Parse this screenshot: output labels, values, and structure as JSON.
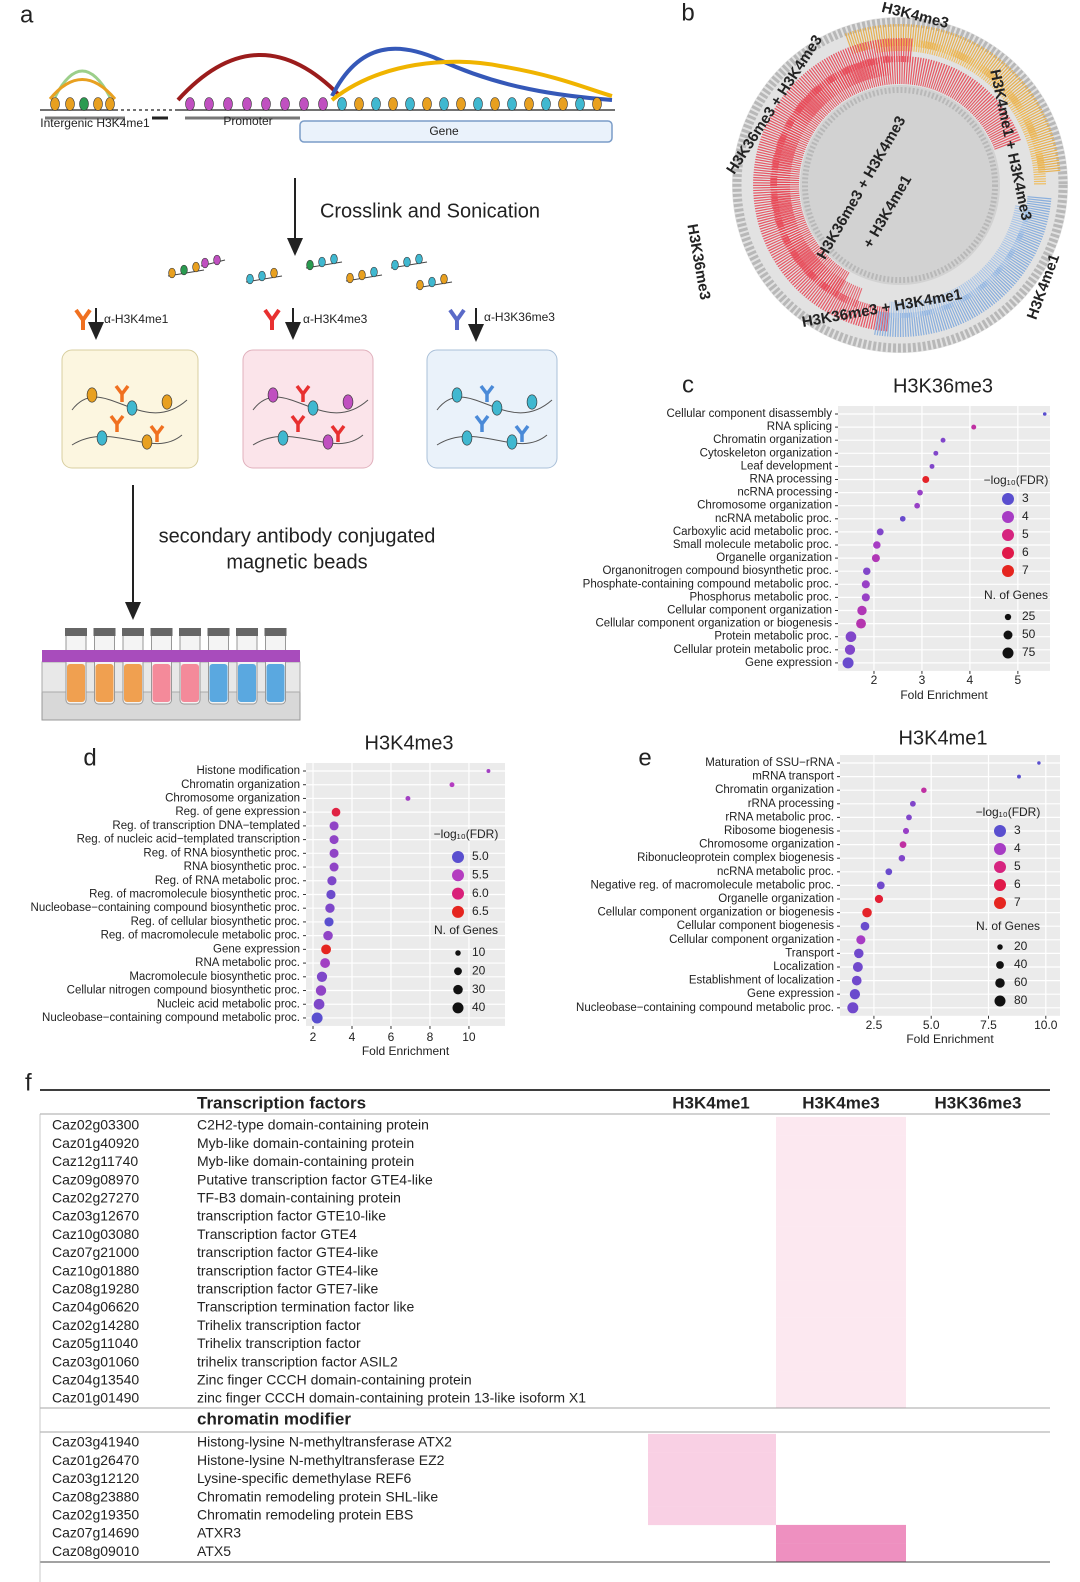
{
  "panel_a": {
    "label": "a",
    "regions": [
      "Intergenic H3K4me1",
      "Promoter",
      "Gene"
    ],
    "step1": "Crosslink and Sonication",
    "antibodies": [
      "α-H3K4me1",
      "α-H3K4me3",
      "α-H3K36me3"
    ],
    "step2": [
      "secondary antibody conjugated",
      "magnetic beads"
    ]
  },
  "panel_b": {
    "label": "b",
    "labels": [
      "H3K4me3",
      "H3K36me3 + H3K4me3",
      "H3K4me1 + H3K4me3",
      "H3K36me3 + H3K4me3",
      "+ H3K4me1",
      "H3K36me3",
      "H3K36me3 + H3K4me1",
      "H3K4me1"
    ]
  },
  "chart_data": [
    {
      "type": "dot",
      "label": "c",
      "title": "H3K36me3",
      "xlabel": "Fold Enrichment",
      "categories": [
        "Cellular component disassembly",
        "RNA splicing",
        "Chromatin organization",
        "Cytoskeleton organization",
        "Leaf development",
        "RNA processing",
        "ncRNA processing",
        "Chromosome organization",
        "ncRNA metabolic proc.",
        "Carboxylic acid metabolic proc.",
        "Small molecule metabolic proc.",
        "Organelle organization",
        "Organonitrogen compound biosynthetic proc.",
        "Phosphate-containing compound metabolic proc.",
        "Phosphorus metabolic proc.",
        "Cellular component organization",
        "Cellular component organization or biogenesis",
        "Protein metabolic proc.",
        "Cellular protein metabolic proc.",
        "Gene expression"
      ],
      "category_colors": [
        "#333333",
        "#e69a00",
        "#3a78b8",
        "#333333",
        "#333333",
        "#e69a00",
        "#1a9a3a",
        "#3a78b8",
        "#1a9a3a",
        "#333333",
        "#333333",
        "#333333",
        "#333333",
        "#333333",
        "#333333",
        "#333333",
        "#333333",
        "#333333",
        "#333333",
        "#c0121c"
      ],
      "values": [
        5.56,
        4.08,
        3.44,
        3.29,
        3.21,
        3.08,
        2.96,
        2.9,
        2.6,
        2.13,
        2.06,
        2.04,
        1.85,
        1.83,
        1.83,
        1.75,
        1.73,
        1.52,
        1.5,
        1.46
      ],
      "fdr": [
        3,
        4.5,
        3.5,
        3.5,
        3.5,
        6.8,
        3.8,
        3.8,
        3.2,
        3.5,
        4,
        4.2,
        3.5,
        3.8,
        3.8,
        4.2,
        4.3,
        3.5,
        3.5,
        3.2
      ],
      "genes": [
        8,
        15,
        15,
        15,
        15,
        30,
        20,
        20,
        20,
        30,
        35,
        40,
        35,
        40,
        40,
        55,
        60,
        70,
        65,
        75
      ],
      "xlim": [
        1.25,
        5.67
      ],
      "xticks": [
        2,
        3,
        4,
        5
      ],
      "grid": true,
      "color_legend": {
        "title": "−log₁₀(FDR)",
        "values": [
          3,
          4,
          5,
          6,
          7
        ],
        "colors": [
          "#5a4fcf",
          "#a73cc4",
          "#d6247f",
          "#e0194a",
          "#e5251f"
        ]
      },
      "size_legend": {
        "title": "N. of Genes",
        "values": [
          25,
          50,
          75
        ]
      }
    },
    {
      "type": "dot",
      "label": "d",
      "title": "H3K4me3",
      "xlabel": "Fold Enrichment",
      "categories": [
        "Histone modification",
        "Chromatin organization",
        "Chromosome organization",
        "Reg. of gene expression",
        "Reg. of transcription DNA−templated",
        "Reg. of nucleic acid−templated transcription",
        "Reg. of RNA biosynthetic proc.",
        "RNA biosynthetic proc.",
        "Reg. of RNA metabolic proc.",
        "Reg. of macromolecule biosynthetic proc.",
        "Nucleobase−containing compound biosynthetic proc.",
        "Reg. of cellular biosynthetic proc.",
        "Reg. of macromolecule metabolic proc.",
        "Gene expression",
        "RNA metabolic proc.",
        "Macromolecule biosynthetic proc.",
        "Cellular nitrogen compound biosynthetic proc.",
        "Nucleic acid metabolic proc.",
        "Nucleobase−containing compound metabolic proc."
      ],
      "category_colors": [
        "#3a78b8",
        "#3a78b8",
        "#3a78b8",
        "#e69a00",
        "#e69a00",
        "#e69a00",
        "#e69a00",
        "#e69a00",
        "#e69a00",
        "#333333",
        "#333333",
        "#333333",
        "#333333",
        "#c0121c",
        "#e69a00",
        "#333333",
        "#333333",
        "#333333",
        "#333333"
      ],
      "values": [
        11.0,
        9.13,
        6.87,
        3.18,
        3.08,
        3.08,
        3.08,
        3.08,
        2.97,
        2.92,
        2.87,
        2.82,
        2.77,
        2.67,
        2.62,
        2.46,
        2.41,
        2.31,
        2.21
      ],
      "fdr": [
        5.4,
        5.5,
        5.4,
        6.3,
        5.3,
        5.3,
        5.3,
        5.3,
        5.2,
        5.1,
        5.2,
        5.0,
        5.3,
        6.5,
        5.4,
        5.2,
        5.3,
        5.2,
        5.0
      ],
      "genes": [
        5,
        8,
        8,
        25,
        27,
        27,
        27,
        27,
        28,
        28,
        29,
        28,
        30,
        32,
        32,
        35,
        36,
        38,
        40
      ],
      "xlim": [
        1.64,
        11.85
      ],
      "xticks": [
        2,
        4,
        6,
        8,
        10
      ],
      "grid": true,
      "color_legend": {
        "title": "−log₁₀(FDR)",
        "values": [
          {
            "value": 5,
            "label": "5.0"
          },
          5.5,
          {
            "value": 6,
            "label": "6.0"
          },
          6.5
        ],
        "colors": [
          "#5a4fcf",
          "#b43cc0",
          "#d9207a",
          "#e5251f"
        ]
      },
      "size_legend": {
        "title": "N. of Genes",
        "values": [
          10,
          20,
          30,
          40
        ]
      }
    },
    {
      "type": "dot",
      "label": "e",
      "title": "H3K4me1",
      "xlabel": "Fold Enrichment",
      "categories": [
        "Maturation of SSU−rRNA",
        "mRNA transport",
        "Chromatin organization",
        "rRNA processing",
        "rRNA metabolic proc.",
        "Ribosome biogenesis",
        "Chromosome organization",
        "Ribonucleoprotein complex biogenesis",
        "ncRNA metabolic proc.",
        "Negative reg. of macromolecule metabolic proc.",
        "Organelle organization",
        "Cellular component organization or biogenesis",
        "Cellular component biogenesis",
        "Cellular component organization",
        "Transport",
        "Localization",
        "Establishment of localization",
        "Gene expression",
        "Nucleobase−containing compound metabolic proc."
      ],
      "category_colors": [
        "#e69a00",
        "#333333",
        "#3a78b8",
        "#e69a00",
        "#e69a00",
        "#e69a00",
        "#3a78b8",
        "#e69a00",
        "#1a9a3a",
        "#333333",
        "#333333",
        "#333333",
        "#333333",
        "#333333",
        "#333333",
        "#333333",
        "#333333",
        "#333333",
        "#333333"
      ],
      "values": [
        9.7,
        8.83,
        4.68,
        4.2,
        4.03,
        3.9,
        3.77,
        3.72,
        3.15,
        2.8,
        2.72,
        2.2,
        2.11,
        1.93,
        1.84,
        1.8,
        1.75,
        1.67,
        1.58
      ],
      "fdr": [
        3,
        3,
        4.5,
        3.5,
        3.5,
        3.8,
        4.5,
        3.5,
        3.2,
        3.3,
        6.5,
        6.8,
        3.2,
        4,
        3.3,
        3.3,
        3.3,
        3.2,
        3.3
      ],
      "genes": [
        8,
        10,
        20,
        22,
        22,
        25,
        30,
        28,
        30,
        40,
        45,
        60,
        50,
        55,
        60,
        65,
        62,
        70,
        80
      ],
      "xlim": [
        1.02,
        10.62
      ],
      "xticks": [
        2.5,
        {
          "value": 5,
          "label": "5.0"
        },
        7.5,
        {
          "value": 10,
          "label": "10.0"
        }
      ],
      "grid": true,
      "color_legend": {
        "title": "−log₁₀(FDR)",
        "values": [
          3,
          4,
          5,
          6,
          7
        ],
        "colors": [
          "#5a4fcf",
          "#a73cc4",
          "#d6247f",
          "#e0194a",
          "#e5251f"
        ]
      },
      "size_legend": {
        "title": "N. of Genes",
        "values": [
          20,
          40,
          60,
          80
        ]
      }
    }
  ],
  "table": {
    "label": "f",
    "header": [
      "Transcription factors",
      "H3K4me1",
      "H3K4me3",
      "H3K36me3"
    ],
    "sections": [
      {
        "rows": [
          {
            "id": "Caz02g03300",
            "name": "C2H2-type domain-containing protein",
            "mark": "H3K4me3",
            "shade": "#fce8f0"
          },
          {
            "id": "Caz01g40920",
            "name": "Myb-like domain-containing protein",
            "mark": "H3K4me3",
            "shade": "#fce8f0"
          },
          {
            "id": "Caz12g11740",
            "name": "Myb-like domain-containing protein",
            "mark": "H3K4me3",
            "shade": "#fce8f0"
          },
          {
            "id": "Caz09g08970",
            "name": "Putative transcription factor GTE4-like",
            "mark": "H3K4me3",
            "shade": "#fce8f0"
          },
          {
            "id": "Caz02g27270",
            "name": "TF-B3 domain-containing protein",
            "mark": "H3K4me3",
            "shade": "#fce8f0"
          },
          {
            "id": "Caz03g12670",
            "name": "transcription factor GTE10-like",
            "mark": "H3K4me3",
            "shade": "#fce8f0"
          },
          {
            "id": "Caz10g03080",
            "name": "Transcription factor GTE4",
            "mark": "H3K4me3",
            "shade": "#fce8f0"
          },
          {
            "id": "Caz07g21000",
            "name": "transcription factor GTE4-like",
            "mark": "H3K4me3",
            "shade": "#fce8f0"
          },
          {
            "id": "Caz10g01880",
            "name": "transcription factor GTE4-like",
            "mark": "H3K4me3",
            "shade": "#fce8f0"
          },
          {
            "id": "Caz08g19280",
            "name": "transcription factor GTE7-like",
            "mark": "H3K4me3",
            "shade": "#fce8f0"
          },
          {
            "id": "Caz04g06620",
            "name": "Transcription termination factor like",
            "mark": "H3K4me3",
            "shade": "#fce8f0"
          },
          {
            "id": "Caz02g14280",
            "name": "Trihelix transcription factor",
            "mark": "H3K4me3",
            "shade": "#fce8f0"
          },
          {
            "id": "Caz05g11040",
            "name": "Trihelix transcription factor",
            "mark": "H3K4me3",
            "shade": "#fce8f0"
          },
          {
            "id": "Caz03g01060",
            "name": "trihelix transcription factor ASIL2",
            "mark": "H3K4me3",
            "shade": "#fce8f0"
          },
          {
            "id": "Caz04g13540",
            "name": "Zinc finger CCCH domain-containing protein",
            "mark": "H3K4me3",
            "shade": "#fce8f0"
          },
          {
            "id": "Caz01g01490",
            "name": "zinc finger CCCH domain-containing protein 13-like isoform X1",
            "mark": "H3K4me3",
            "shade": "#fce8f0"
          }
        ]
      },
      {
        "title": "chromatin modifier",
        "rows": [
          {
            "id": "Caz03g41940",
            "name": "Histong-lysine N-methyltransferase  ATX2",
            "mark": "H3K4me1",
            "shade": "#f9d0e4"
          },
          {
            "id": "Caz01g26470",
            "name": "Histone-lysine N-methyltransferase EZ2",
            "mark": "H3K4me1",
            "shade": "#f9d0e4"
          },
          {
            "id": "Caz03g12120",
            "name": "Lysine-specific demethylase REF6",
            "mark": "H3K4me1",
            "shade": "#f9d0e4"
          },
          {
            "id": "Caz08g23880",
            "name": "Chromatin remodeling protein SHL-like",
            "mark": "H3K4me1",
            "shade": "#f9d0e4"
          },
          {
            "id": "Caz02g19350",
            "name": "Chromatin remodeling protein EBS",
            "mark": "H3K4me1",
            "shade": "#f9d0e4"
          },
          {
            "id": "Caz07g14690",
            "name": "ATXR3",
            "mark": "H3K4me3",
            "shade": "#ee90c0"
          },
          {
            "id": "Caz08g09010",
            "name": "ATX5",
            "mark": "H3K4me3",
            "shade": "#ee90c0"
          }
        ]
      }
    ]
  }
}
